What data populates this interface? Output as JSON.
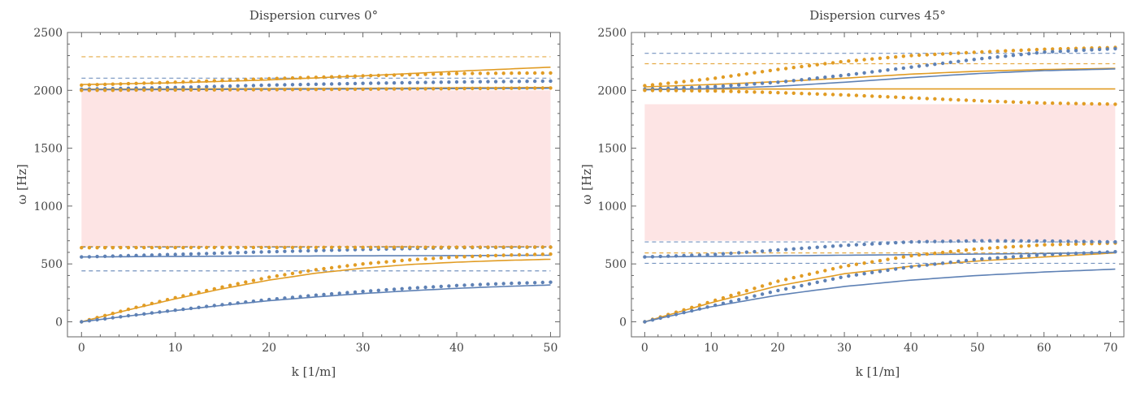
{
  "colors": {
    "blue": "#5e81b5",
    "orange": "#e19c24",
    "band": "#fde4e4",
    "frame": "#666666"
  },
  "chart_data": [
    {
      "type": "line",
      "title": "Dispersion curves 0°",
      "xlabel": "k [1/m]",
      "ylabel": "ω [Hz]",
      "xlim": [
        -1.5,
        51
      ],
      "ylim": [
        -130,
        2500
      ],
      "xticks": [
        0,
        10,
        20,
        30,
        40,
        50
      ],
      "yticks": [
        0,
        500,
        1000,
        1500,
        2000,
        2500
      ],
      "band_gap": {
        "x": [
          0,
          50
        ],
        "y": [
          650,
          2000
        ]
      },
      "solid_lines": [
        {
          "color": "orange",
          "x": [
            0,
            5,
            10,
            15,
            20,
            25,
            30,
            35,
            40,
            45,
            50
          ],
          "y": [
            0,
            103,
            198,
            285,
            360,
            420,
            463,
            495,
            515,
            530,
            540
          ]
        },
        {
          "color": "blue",
          "x": [
            0,
            5,
            10,
            15,
            20,
            25,
            30,
            35,
            40,
            45,
            50
          ],
          "y": [
            0,
            50,
            97,
            142,
            182,
            215,
            244,
            268,
            289,
            305,
            318
          ]
        },
        {
          "color": "blue",
          "x": [
            0,
            10,
            20,
            30,
            40,
            50
          ],
          "y": [
            560,
            565,
            568,
            570,
            572,
            575
          ]
        },
        {
          "color": "orange",
          "x": [
            0,
            10,
            20,
            30,
            40,
            50
          ],
          "y": [
            2050,
            2065,
            2090,
            2125,
            2165,
            2200
          ]
        },
        {
          "color": "orange",
          "x": [
            0,
            10,
            20,
            30,
            40,
            50
          ],
          "y": [
            2010,
            2012,
            2015,
            2018,
            2022,
            2025
          ]
        },
        {
          "color": "blue",
          "x": [
            0,
            10,
            20,
            30,
            40,
            50
          ],
          "y": [
            2005,
            2007,
            2009,
            2012,
            2015,
            2018
          ]
        }
      ],
      "dotted_series": [
        {
          "color": "orange",
          "x": [
            0,
            5,
            10,
            15,
            20,
            25,
            30,
            35,
            40,
            45,
            50
          ],
          "y": [
            0,
            108,
            208,
            300,
            385,
            450,
            500,
            535,
            560,
            575,
            585
          ]
        },
        {
          "color": "blue",
          "x": [
            0,
            5,
            10,
            15,
            20,
            25,
            30,
            35,
            40,
            45,
            50
          ],
          "y": [
            0,
            52,
            100,
            148,
            192,
            230,
            262,
            290,
            313,
            330,
            342
          ]
        },
        {
          "color": "blue",
          "x": [
            0,
            10,
            20,
            30,
            40,
            50
          ],
          "y": [
            560,
            582,
            605,
            625,
            640,
            645
          ]
        },
        {
          "color": "orange",
          "x": [
            0,
            10,
            20,
            30,
            40,
            50
          ],
          "y": [
            640,
            641,
            642,
            643,
            644,
            645
          ]
        },
        {
          "color": "blue",
          "x": [
            0,
            10,
            20,
            30,
            40,
            50
          ],
          "y": [
            2010,
            2025,
            2045,
            2060,
            2072,
            2080
          ]
        },
        {
          "color": "orange",
          "x": [
            0,
            10,
            20,
            30,
            40,
            50
          ],
          "y": [
            2045,
            2070,
            2100,
            2125,
            2145,
            2150
          ]
        },
        {
          "color": "orange",
          "x": [
            0,
            10,
            20,
            30,
            40,
            50
          ],
          "y": [
            2000,
            2003,
            2006,
            2010,
            2015,
            2020
          ]
        }
      ],
      "dashed_lines": [
        {
          "color": "orange",
          "y": 2290
        },
        {
          "color": "blue",
          "y": 2105
        },
        {
          "color": "orange",
          "y": 650
        },
        {
          "color": "blue",
          "y": 645
        },
        {
          "color": "blue",
          "y": 440
        }
      ]
    },
    {
      "type": "line",
      "title": "Dispersion curves 45°",
      "xlabel": "k [1/m]",
      "ylabel": "ω [Hz]",
      "xlim": [
        -2,
        72
      ],
      "ylim": [
        -130,
        2500
      ],
      "xticks": [
        0,
        10,
        20,
        30,
        40,
        50,
        60,
        70
      ],
      "yticks": [
        0,
        500,
        1000,
        1500,
        2000,
        2500
      ],
      "band_gap": {
        "x": [
          0,
          70.7
        ],
        "y": [
          700,
          1880
        ]
      },
      "solid_lines": [
        {
          "color": "orange",
          "x": [
            0,
            10,
            20,
            30,
            40,
            50,
            60,
            70.7
          ],
          "y": [
            0,
            165,
            310,
            415,
            480,
            525,
            560,
            595
          ]
        },
        {
          "color": "blue",
          "x": [
            0,
            10,
            20,
            30,
            40,
            50,
            60,
            70.7
          ],
          "y": [
            0,
            130,
            230,
            305,
            360,
            400,
            430,
            455
          ]
        },
        {
          "color": "blue",
          "x": [
            0,
            10,
            20,
            30,
            40,
            50,
            60,
            70.7
          ],
          "y": [
            560,
            565,
            570,
            575,
            580,
            585,
            590,
            600
          ]
        },
        {
          "color": "orange",
          "x": [
            0,
            10,
            20,
            30,
            40,
            50,
            60,
            70.7
          ],
          "y": [
            2010,
            2011,
            2011,
            2012,
            2012,
            2012,
            2012,
            2012
          ]
        },
        {
          "color": "orange",
          "x": [
            0,
            10,
            20,
            30,
            40,
            50,
            60,
            70.7
          ],
          "y": [
            2030,
            2050,
            2075,
            2105,
            2140,
            2165,
            2180,
            2190
          ]
        },
        {
          "color": "blue",
          "x": [
            0,
            10,
            20,
            30,
            40,
            50,
            60,
            70.7
          ],
          "y": [
            2005,
            2015,
            2035,
            2070,
            2110,
            2145,
            2170,
            2185
          ]
        }
      ],
      "dotted_series": [
        {
          "color": "orange",
          "x": [
            0,
            10,
            20,
            30,
            40,
            50,
            60,
            70.7
          ],
          "y": [
            0,
            175,
            350,
            480,
            570,
            630,
            665,
            680
          ]
        },
        {
          "color": "blue",
          "x": [
            0,
            10,
            20,
            30,
            40,
            50,
            60,
            70.7
          ],
          "y": [
            0,
            135,
            270,
            390,
            475,
            540,
            580,
            605
          ]
        },
        {
          "color": "blue",
          "x": [
            0,
            10,
            20,
            30,
            40,
            50,
            60,
            70.7
          ],
          "y": [
            560,
            580,
            620,
            660,
            690,
            700,
            698,
            690
          ]
        },
        {
          "color": "orange",
          "x": [
            0,
            10,
            20,
            30,
            40,
            50,
            60,
            70.7
          ],
          "y": [
            2040,
            2100,
            2180,
            2250,
            2300,
            2330,
            2355,
            2370
          ]
        },
        {
          "color": "blue",
          "x": [
            0,
            10,
            20,
            30,
            40,
            50,
            60,
            70.7
          ],
          "y": [
            2010,
            2030,
            2070,
            2130,
            2200,
            2270,
            2330,
            2360
          ]
        },
        {
          "color": "orange",
          "x": [
            0,
            10,
            20,
            30,
            40,
            50,
            60,
            70.7
          ],
          "y": [
            2000,
            1995,
            1980,
            1960,
            1935,
            1910,
            1890,
            1880
          ]
        }
      ],
      "dashed_lines": [
        {
          "color": "blue",
          "y": 2320
        },
        {
          "color": "orange",
          "y": 2230
        },
        {
          "color": "blue",
          "y": 690
        },
        {
          "color": "orange",
          "y": 595
        },
        {
          "color": "blue",
          "y": 505
        }
      ]
    }
  ]
}
